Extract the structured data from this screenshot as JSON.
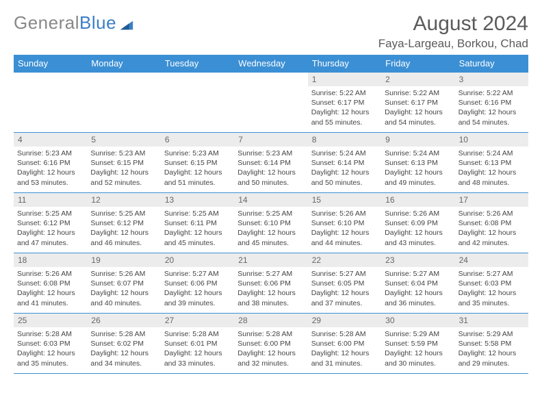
{
  "logo": {
    "word1": "General",
    "word2": "Blue"
  },
  "title": "August 2024",
  "location": "Faya-Largeau, Borkou, Chad",
  "colors": {
    "header_bg": "#3b8fd4",
    "header_text": "#ffffff",
    "daynum_bg": "#ececec",
    "border": "#3b8fd4",
    "logo_gray": "#888888",
    "logo_blue": "#3b7fc4"
  },
  "weekdays": [
    "Sunday",
    "Monday",
    "Tuesday",
    "Wednesday",
    "Thursday",
    "Friday",
    "Saturday"
  ],
  "blanks_before": 4,
  "days": [
    {
      "n": "1",
      "sr": "5:22 AM",
      "ss": "6:17 PM",
      "dl": "12 hours and 55 minutes."
    },
    {
      "n": "2",
      "sr": "5:22 AM",
      "ss": "6:17 PM",
      "dl": "12 hours and 54 minutes."
    },
    {
      "n": "3",
      "sr": "5:22 AM",
      "ss": "6:16 PM",
      "dl": "12 hours and 54 minutes."
    },
    {
      "n": "4",
      "sr": "5:23 AM",
      "ss": "6:16 PM",
      "dl": "12 hours and 53 minutes."
    },
    {
      "n": "5",
      "sr": "5:23 AM",
      "ss": "6:15 PM",
      "dl": "12 hours and 52 minutes."
    },
    {
      "n": "6",
      "sr": "5:23 AM",
      "ss": "6:15 PM",
      "dl": "12 hours and 51 minutes."
    },
    {
      "n": "7",
      "sr": "5:23 AM",
      "ss": "6:14 PM",
      "dl": "12 hours and 50 minutes."
    },
    {
      "n": "8",
      "sr": "5:24 AM",
      "ss": "6:14 PM",
      "dl": "12 hours and 50 minutes."
    },
    {
      "n": "9",
      "sr": "5:24 AM",
      "ss": "6:13 PM",
      "dl": "12 hours and 49 minutes."
    },
    {
      "n": "10",
      "sr": "5:24 AM",
      "ss": "6:13 PM",
      "dl": "12 hours and 48 minutes."
    },
    {
      "n": "11",
      "sr": "5:25 AM",
      "ss": "6:12 PM",
      "dl": "12 hours and 47 minutes."
    },
    {
      "n": "12",
      "sr": "5:25 AM",
      "ss": "6:12 PM",
      "dl": "12 hours and 46 minutes."
    },
    {
      "n": "13",
      "sr": "5:25 AM",
      "ss": "6:11 PM",
      "dl": "12 hours and 45 minutes."
    },
    {
      "n": "14",
      "sr": "5:25 AM",
      "ss": "6:10 PM",
      "dl": "12 hours and 45 minutes."
    },
    {
      "n": "15",
      "sr": "5:26 AM",
      "ss": "6:10 PM",
      "dl": "12 hours and 44 minutes."
    },
    {
      "n": "16",
      "sr": "5:26 AM",
      "ss": "6:09 PM",
      "dl": "12 hours and 43 minutes."
    },
    {
      "n": "17",
      "sr": "5:26 AM",
      "ss": "6:08 PM",
      "dl": "12 hours and 42 minutes."
    },
    {
      "n": "18",
      "sr": "5:26 AM",
      "ss": "6:08 PM",
      "dl": "12 hours and 41 minutes."
    },
    {
      "n": "19",
      "sr": "5:26 AM",
      "ss": "6:07 PM",
      "dl": "12 hours and 40 minutes."
    },
    {
      "n": "20",
      "sr": "5:27 AM",
      "ss": "6:06 PM",
      "dl": "12 hours and 39 minutes."
    },
    {
      "n": "21",
      "sr": "5:27 AM",
      "ss": "6:06 PM",
      "dl": "12 hours and 38 minutes."
    },
    {
      "n": "22",
      "sr": "5:27 AM",
      "ss": "6:05 PM",
      "dl": "12 hours and 37 minutes."
    },
    {
      "n": "23",
      "sr": "5:27 AM",
      "ss": "6:04 PM",
      "dl": "12 hours and 36 minutes."
    },
    {
      "n": "24",
      "sr": "5:27 AM",
      "ss": "6:03 PM",
      "dl": "12 hours and 35 minutes."
    },
    {
      "n": "25",
      "sr": "5:28 AM",
      "ss": "6:03 PM",
      "dl": "12 hours and 35 minutes."
    },
    {
      "n": "26",
      "sr": "5:28 AM",
      "ss": "6:02 PM",
      "dl": "12 hours and 34 minutes."
    },
    {
      "n": "27",
      "sr": "5:28 AM",
      "ss": "6:01 PM",
      "dl": "12 hours and 33 minutes."
    },
    {
      "n": "28",
      "sr": "5:28 AM",
      "ss": "6:00 PM",
      "dl": "12 hours and 32 minutes."
    },
    {
      "n": "29",
      "sr": "5:28 AM",
      "ss": "6:00 PM",
      "dl": "12 hours and 31 minutes."
    },
    {
      "n": "30",
      "sr": "5:29 AM",
      "ss": "5:59 PM",
      "dl": "12 hours and 30 minutes."
    },
    {
      "n": "31",
      "sr": "5:29 AM",
      "ss": "5:58 PM",
      "dl": "12 hours and 29 minutes."
    }
  ],
  "labels": {
    "sunrise": "Sunrise:",
    "sunset": "Sunset:",
    "daylight": "Daylight:"
  }
}
